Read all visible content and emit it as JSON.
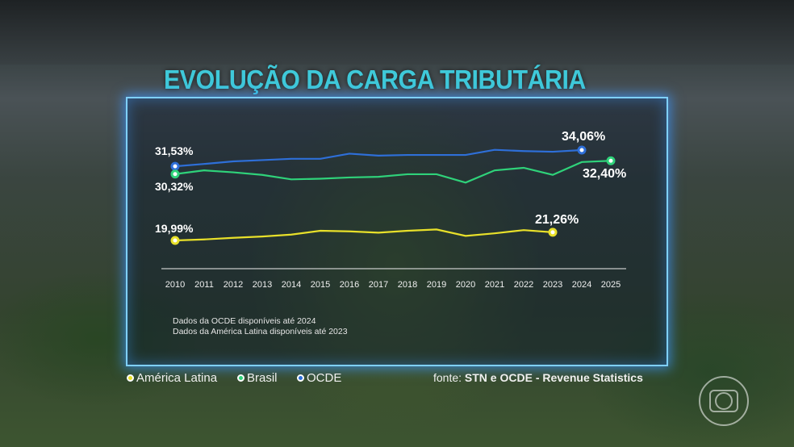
{
  "title": "EVOLUÇÃO DA CARGA TRIBUTÁRIA",
  "notes": [
    "Dados da OCDE disponíveis até 2024",
    "Dados da América Latina disponíveis até 2023"
  ],
  "source": {
    "prefix": "fonte:",
    "text": "STN e OCDE - Revenue Statistics"
  },
  "legend": [
    {
      "label": "América Latina",
      "color": "#e8e02a"
    },
    {
      "label": "Brasil",
      "color": "#2fd27a"
    },
    {
      "label": "OCDE",
      "color": "#2e6fd8"
    }
  ],
  "chart_data": {
    "type": "line",
    "title": "EVOLUÇÃO DA CARGA TRIBUTÁRIA",
    "x": [
      2010,
      2011,
      2012,
      2013,
      2014,
      2015,
      2016,
      2017,
      2018,
      2019,
      2020,
      2021,
      2022,
      2023,
      2024,
      2025
    ],
    "unit": "%",
    "grid": false,
    "series": [
      {
        "name": "OCDE",
        "color": "#2e6fd8",
        "values": [
          31.53,
          31.9,
          32.3,
          32.5,
          32.7,
          32.7,
          33.5,
          33.2,
          33.3,
          33.3,
          33.3,
          34.1,
          33.9,
          33.8,
          34.06,
          null
        ],
        "labels": {
          "2010": "31,53%",
          "2024": "34,06%"
        }
      },
      {
        "name": "Brasil",
        "color": "#2fd27a",
        "values": [
          30.32,
          30.9,
          30.6,
          30.2,
          29.5,
          29.6,
          29.8,
          29.9,
          30.3,
          30.3,
          29.0,
          30.9,
          31.3,
          30.2,
          32.2,
          32.4
        ],
        "labels": {
          "2010": "30,32%",
          "2025": "32,40%"
        }
      },
      {
        "name": "América Latina",
        "color": "#e8e02a",
        "values": [
          19.99,
          20.15,
          20.4,
          20.6,
          20.9,
          21.5,
          21.4,
          21.2,
          21.5,
          21.7,
          20.7,
          21.1,
          21.6,
          21.26,
          null,
          null
        ],
        "labels": {
          "2010": "19,99%",
          "2023": "21,26%"
        }
      }
    ]
  }
}
